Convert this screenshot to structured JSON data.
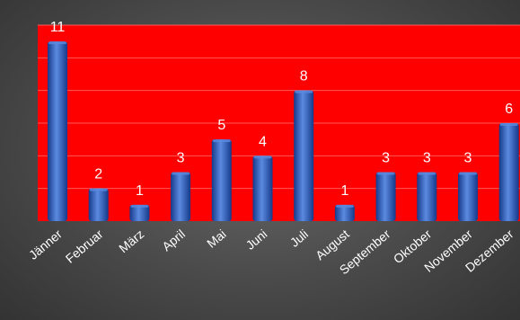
{
  "chart_data": {
    "type": "bar",
    "title": "",
    "xlabel": "",
    "ylabel": "",
    "categories": [
      "Jänner",
      "Februar",
      "März",
      "April",
      "Mai",
      "Juni",
      "Juli",
      "August",
      "September",
      "Oktober",
      "November",
      "Dezember"
    ],
    "values": [
      11,
      2,
      1,
      3,
      5,
      4,
      8,
      1,
      3,
      3,
      3,
      6
    ],
    "ylim": [
      0,
      12
    ],
    "grid": true,
    "legend": "none",
    "colors": {
      "plot_background": "#ff0000",
      "bar": "#2f5fc4",
      "bar_highlight": "#5b8ae0",
      "bar_shadow": "#163a8a",
      "gridline": "#ff5a5a",
      "label_text": "#ffffff"
    }
  }
}
